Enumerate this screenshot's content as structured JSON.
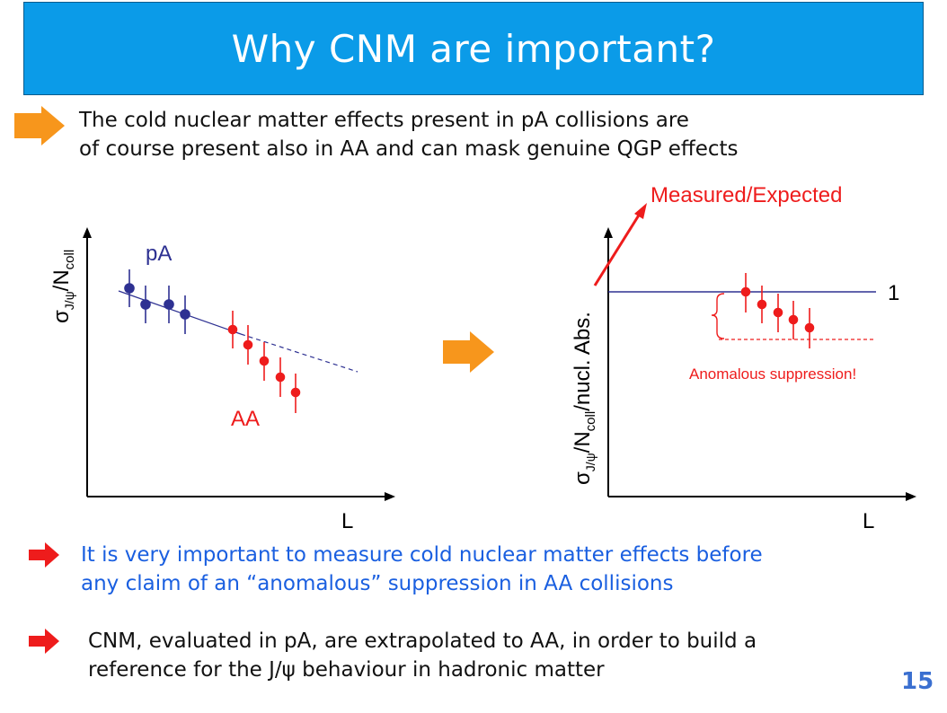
{
  "slide": {
    "title": "Why CNM are important?",
    "intro_line1": "The cold nuclear matter effects present in pA collisions are",
    "intro_line2": "of course present also in AA and can mask genuine QGP effects",
    "bullet1_line1": "It is very important to measure cold nuclear matter effects before",
    "bullet1_line2": "any claim of an “anomalous” suppression in AA collisions",
    "bullet2_line1": "CNM, evaluated in pA, are extrapolated to AA, in order to build a",
    "bullet2_line2": "reference for the J/ψ behaviour in hadronic matter",
    "page_number": "15"
  },
  "colors": {
    "title_bg": "#0b9be8",
    "orange_arrow": "#f7961c",
    "red_arrow": "#ee1c1c",
    "pA": "#2e3192",
    "AA": "#ee1c1c",
    "blue_text": "#1a5fe0"
  },
  "left_plot": {
    "ylabel_sigma": "σ",
    "ylabel_sub": "J/ψ",
    "ylabel_slash": "/N",
    "ylabel_coll": "coll",
    "xlabel": "L",
    "label_pA": "pA",
    "label_AA": "AA"
  },
  "right_plot": {
    "ylabel_sigma": "σ",
    "ylabel_sub": "J/ψ",
    "ylabel_slash": "/N",
    "ylabel_coll": "coll",
    "ylabel_rest": "/nucl. Abs.",
    "xlabel": "L",
    "annotation_top": "Measured/Expected",
    "line_label": "1",
    "annotation_suppression": "Anomalous suppression!"
  }
}
